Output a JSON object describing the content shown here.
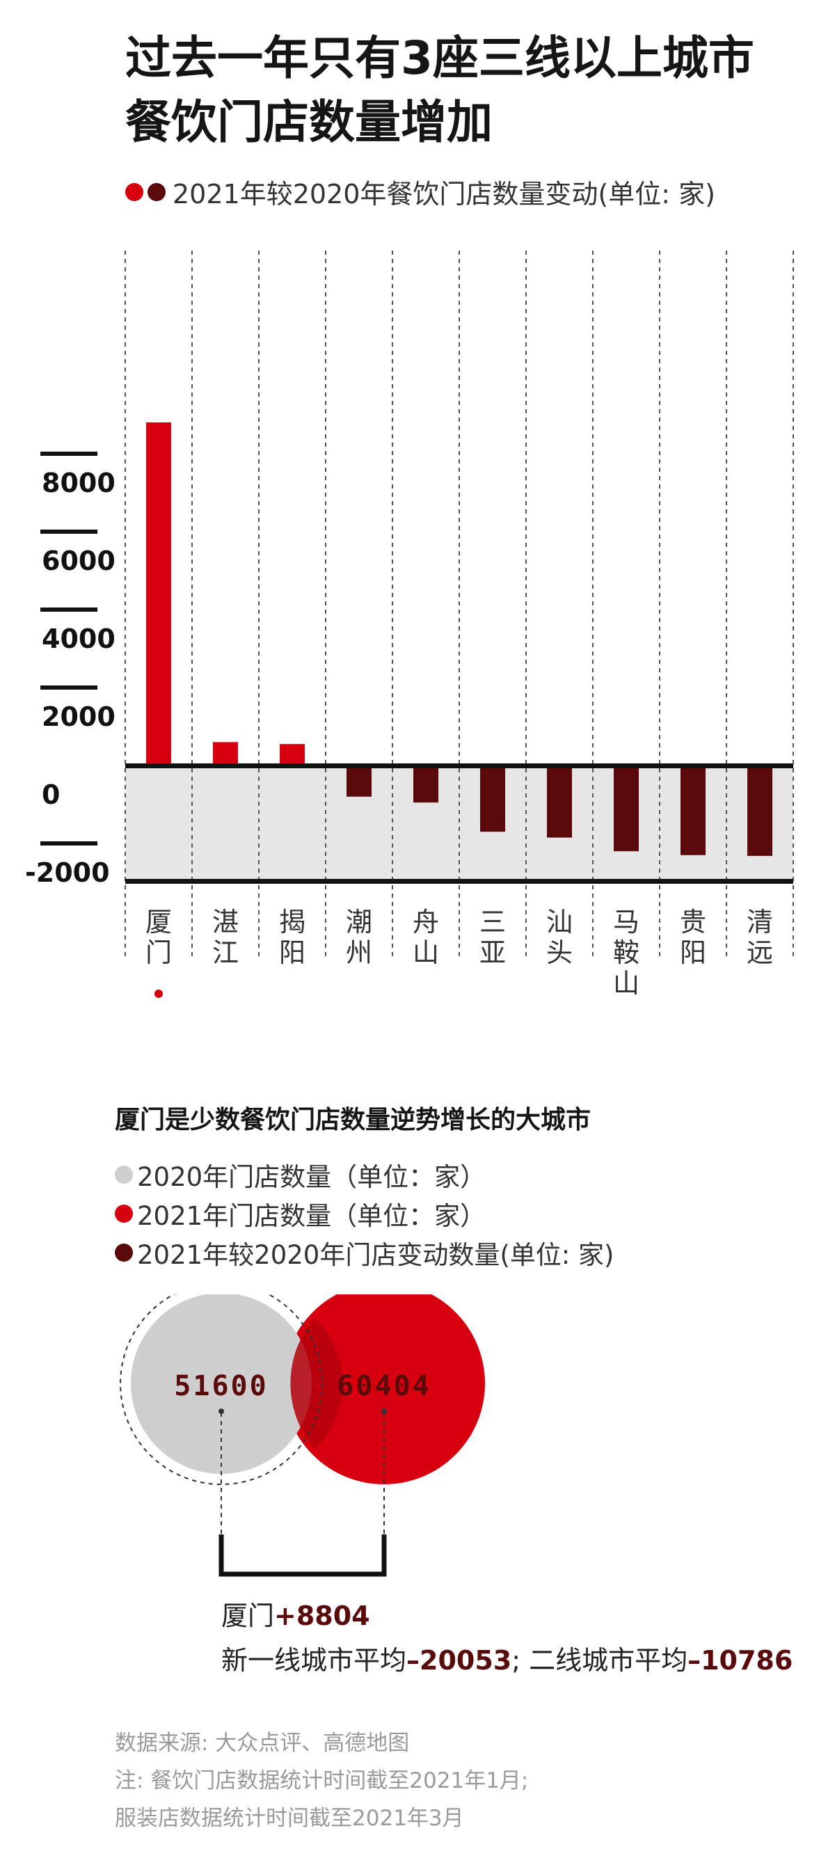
{
  "title_line1": "过去一年只有3座三线以上城市",
  "title_line2": "餐饮门店数量增加",
  "legend_top": "2021年较2020年餐饮门店数量变动(单位: 家)",
  "colors": {
    "increase": "#d7000f",
    "decrease": "#5a0a0a",
    "gray": "#cfcfcf",
    "shade": "#e6e6e6"
  },
  "chart_data": {
    "type": "bar",
    "categories": [
      "厦门",
      "湛江",
      "揭阳",
      "潮州",
      "舟山",
      "三亚",
      "汕头",
      "马鞍山",
      "贵阳",
      "清远"
    ],
    "values": [
      8804,
      600,
      550,
      -800,
      -950,
      -1700,
      -1850,
      -2200,
      -2300,
      -2320
    ],
    "ylim": [
      -3000,
      9000
    ],
    "yticks": [
      8000,
      6000,
      4000,
      2000,
      0,
      -2000
    ],
    "ytick_labels": [
      "8000",
      "6000",
      "4000",
      "2000",
      "0",
      "-2000"
    ],
    "highlight_marker_under": "厦门"
  },
  "section2_title": "厦门是少数餐饮门店数量逆势增长的大城市",
  "legend2": [
    {
      "label": "2020年门店数量（单位：家）",
      "color": "#cfcfcf"
    },
    {
      "label": "2021年门店数量（单位：家）",
      "color": "#d7000f"
    },
    {
      "label": "2021年较2020年门店变动数量(单位: 家)",
      "color": "#5a0a0a"
    }
  ],
  "venn": {
    "count_2020": "51600",
    "count_2021": "60404"
  },
  "summary": {
    "city": "厦门",
    "city_change": "+8804",
    "line2_a": "新一线城市平均",
    "line2_a_val": "–20053",
    "line2_sep": "; 二线城市平均",
    "line2_b_val": "–10786"
  },
  "source": {
    "line1": "数据来源: 大众点评、高德地图",
    "line2": "注: 餐饮门店数据统计时间截至2021年1月;",
    "line3": "服装店数据统计时间截至2021年3月"
  }
}
